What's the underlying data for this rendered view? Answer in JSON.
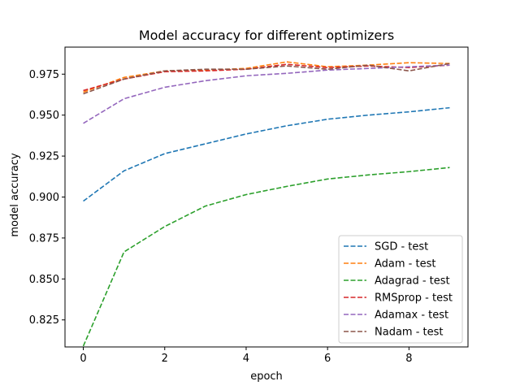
{
  "chart_data": {
    "type": "line",
    "title": "Model accuracy for different optimizers",
    "xlabel": "epoch",
    "ylabel": "model accuracy",
    "x": [
      0,
      1,
      2,
      3,
      4,
      5,
      6,
      7,
      8,
      9
    ],
    "xlim": [
      -0.45,
      9.45
    ],
    "ylim": [
      0.8085,
      0.9915
    ],
    "xticks": [
      0,
      2,
      4,
      6,
      8
    ],
    "yticks": [
      0.825,
      0.85,
      0.875,
      0.9,
      0.925,
      0.95,
      0.975
    ],
    "ytick_labels": [
      "0.825",
      "0.850",
      "0.875",
      "0.900",
      "0.925",
      "0.950",
      "0.975"
    ],
    "grid": false,
    "legend_position": "lower right",
    "line_style": "dashed",
    "series": [
      {
        "name": "SGD - test",
        "color": "#1f77b4",
        "values": [
          0.8975,
          0.916,
          0.9265,
          0.9325,
          0.9385,
          0.9435,
          0.9475,
          0.95,
          0.952,
          0.9545
        ]
      },
      {
        "name": "Adam - test",
        "color": "#ff7f0e",
        "values": [
          0.964,
          0.973,
          0.977,
          0.9775,
          0.9785,
          0.9825,
          0.9795,
          0.9805,
          0.982,
          0.9815
        ]
      },
      {
        "name": "Adagrad - test",
        "color": "#2ca02c",
        "values": [
          0.809,
          0.8665,
          0.882,
          0.8945,
          0.9015,
          0.9065,
          0.911,
          0.9135,
          0.9155,
          0.918
        ]
      },
      {
        "name": "RMSprop - test",
        "color": "#d62728",
        "values": [
          0.965,
          0.972,
          0.9765,
          0.977,
          0.978,
          0.981,
          0.979,
          0.98,
          0.979,
          0.9805
        ]
      },
      {
        "name": "Adamax - test",
        "color": "#9467bd",
        "values": [
          0.945,
          0.96,
          0.967,
          0.971,
          0.974,
          0.9755,
          0.9775,
          0.9785,
          0.9795,
          0.9805
        ]
      },
      {
        "name": "Nadam - test",
        "color": "#8c564b",
        "values": [
          0.963,
          0.972,
          0.977,
          0.978,
          0.978,
          0.98,
          0.978,
          0.9805,
          0.977,
          0.9815
        ]
      }
    ]
  }
}
